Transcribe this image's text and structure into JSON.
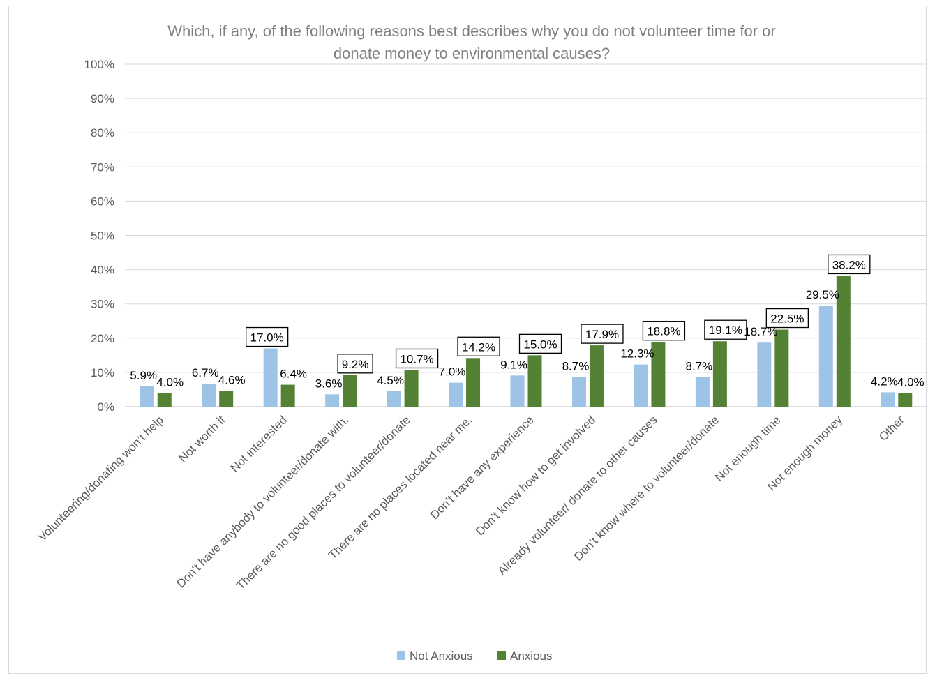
{
  "chart_data": {
    "type": "bar",
    "title": "Which, if any, of the following reasons best describes why you do not volunteer time for or donate money to environmental causes?",
    "title_lines": [
      "Which, if any, of the following reasons best describes why you do not volunteer time for or",
      "donate money to environmental causes?"
    ],
    "xlabel": "",
    "ylabel": "",
    "ylim": [
      0,
      100
    ],
    "y_ticks": [
      0,
      10,
      20,
      30,
      40,
      50,
      60,
      70,
      80,
      90,
      100
    ],
    "y_tick_labels": [
      "0%",
      "10%",
      "20%",
      "30%",
      "40%",
      "50%",
      "60%",
      "70%",
      "80%",
      "90%",
      "100%"
    ],
    "grid": true,
    "legend_position": "bottom",
    "categories": [
      "Volunteering/donating won’t help",
      "Not worth it",
      "Not interested",
      "Don’t have anybody to volunteer/donate with.",
      "There are no good places to volunteer/donate",
      "There are no places located near me.",
      "Don’t have any experience",
      "Don’t know how to get involved",
      "Already volunteer/ donate to other causes",
      "Don’t know where to volunteer/donate",
      "Not enough time",
      "Not enough money",
      "Other"
    ],
    "series": [
      {
        "name": "Not Anxious",
        "color": "#9dc3e6",
        "values": [
          5.9,
          6.7,
          17.0,
          3.6,
          4.5,
          7.0,
          9.1,
          8.7,
          12.3,
          8.7,
          18.7,
          29.5,
          4.2
        ],
        "labels": [
          "5.9%",
          "6.7%",
          "17.0%",
          "3.6%",
          "4.5%",
          "7.0%",
          "9.1%",
          "8.7%",
          "12.3%",
          "8.7%",
          "18.7%",
          "29.5%",
          "4.2%"
        ],
        "boxed": [
          false,
          false,
          true,
          false,
          false,
          false,
          false,
          false,
          false,
          false,
          false,
          false,
          false
        ]
      },
      {
        "name": "Anxious",
        "color": "#548235",
        "values": [
          4.0,
          4.6,
          6.4,
          9.2,
          10.7,
          14.2,
          15.0,
          17.9,
          18.8,
          19.1,
          22.5,
          38.2,
          4.0
        ],
        "labels": [
          "4.0%",
          "4.6%",
          "6.4%",
          "9.2%",
          "10.7%",
          "14.2%",
          "15.0%",
          "17.9%",
          "18.8%",
          "19.1%",
          "22.5%",
          "38.2%",
          "4.0%"
        ],
        "boxed": [
          false,
          false,
          false,
          true,
          true,
          true,
          true,
          true,
          true,
          true,
          true,
          true,
          false
        ]
      }
    ]
  }
}
